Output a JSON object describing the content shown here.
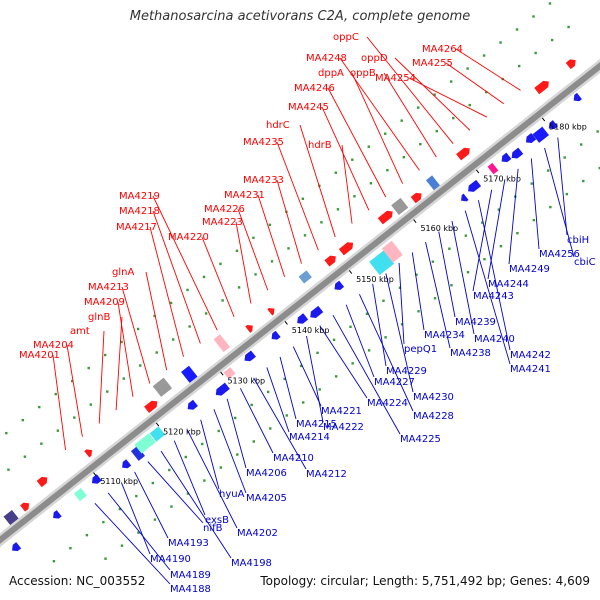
{
  "title": "Methanosarcina acetivorans C2A, complete genome",
  "accession": "Accession: NC_003552",
  "summary": "Topology: circular; Length: 5,751,492 bp; Genes: 4,609",
  "colors": {
    "forward_label": "#ff0000",
    "reverse_label": "#0000cc",
    "backbone": "#9a9a9a",
    "tick": "#2e8b2e"
  },
  "ticks": [
    "5110 kbp",
    "5120 kbp",
    "5130 kbp",
    "5140 kbp",
    "5150 kbp",
    "5160 kbp",
    "5170 kbp",
    "5180 kbp"
  ],
  "forward_labels": [
    "MA4201",
    "MA4204",
    "amt",
    "glnB",
    "MA4209",
    "MA4213",
    "glnA",
    "MA4217",
    "MA4218",
    "MA4219",
    "MA4220",
    "MA4223",
    "MA4226",
    "MA4231",
    "MA4233",
    "MA4235",
    "hdrC",
    "hdrB",
    "MA4245",
    "MA4246",
    "dppA",
    "MA4248",
    "oppB",
    "oppC",
    "oppD",
    "MA4254",
    "MA4255",
    "MA4264"
  ],
  "reverse_labels": [
    "MA4188",
    "MA4189",
    "MA4190",
    "MA4193",
    "nifB",
    "MA4198",
    "exsB",
    "MA4202",
    "hyuA",
    "MA4205",
    "MA4206",
    "MA4210",
    "MA4212",
    "MA4214",
    "MA4215",
    "MA4221",
    "MA4222",
    "MA4224",
    "MA4225",
    "MA4227",
    "MA4228",
    "MA4229",
    "MA4230",
    "pepQ1",
    "MA4234",
    "MA4238",
    "MA4239",
    "MA4240",
    "MA4241",
    "MA4242",
    "MA4243",
    "MA4244",
    "MA4249",
    "MA4256",
    "cbiC",
    "cbiH"
  ]
}
